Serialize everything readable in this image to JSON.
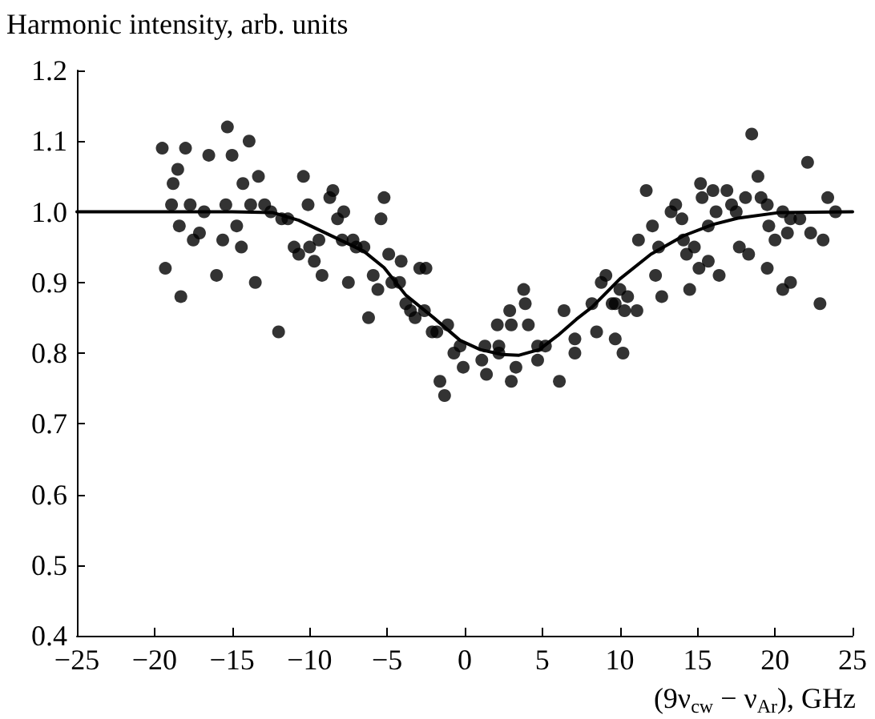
{
  "chart_data": {
    "type": "scatter",
    "xlabel": "(9ν$_{cw}$ − ν$_{Ar}$), GHz",
    "ylabel": "Harmonic intensity, arb. units",
    "xlim": [
      -25,
      25
    ],
    "xticks": [
      {
        "value": -25,
        "label": "−25"
      },
      {
        "value": -20,
        "label": "−20"
      },
      {
        "value": -15,
        "label": "−15"
      },
      {
        "value": -10,
        "label": "−10"
      },
      {
        "value": -5,
        "label": "−5"
      },
      0,
      5,
      10,
      15,
      20,
      25
    ],
    "ylim": [
      0.4,
      1.2
    ],
    "yticks": [
      0.4,
      0.5,
      0.6,
      0.7,
      0.8,
      0.9,
      {
        "value": 1,
        "label": "1.0"
      },
      1.1,
      1.2
    ],
    "series": [
      {
        "type": "scatter",
        "marker": "circle",
        "color": "#000000",
        "x": [
          -15.3,
          -19.5,
          -18.0,
          -16.5,
          -15.0,
          -13.9,
          -18.5,
          -18.8,
          -13.3,
          -14.3,
          -10.4,
          -8.5,
          -8.7,
          -18.9,
          -17.7,
          -16.8,
          -15.4,
          -13.8,
          -12.9,
          -12.5,
          -10.1,
          -7.8,
          -8.2,
          -5.2,
          -5.4,
          -18.4,
          -11.8,
          -11.4,
          -17.1,
          -14.7,
          -17.5,
          -15.6,
          -14.4,
          -11.0,
          -10.0,
          -9.4,
          -10.7,
          -9.7,
          -7.9,
          -7.2,
          -7.0,
          -6.5,
          -19.3,
          -16.0,
          -13.5,
          -9.2,
          -7.5,
          -5.9,
          -5.6,
          -18.3,
          -6.2,
          -12.0,
          -4.9,
          -4.1,
          -2.9,
          -2.5,
          -4.7,
          -4.2,
          -3.8,
          -3.5,
          -2.6,
          -3.2,
          -2.1,
          -1.8,
          -1.1,
          3.8,
          3.9,
          2.9,
          2.1,
          3.0,
          4.1,
          6.4,
          8.2,
          -0.3,
          -0.7,
          1.3,
          2.2,
          2.2,
          4.7,
          5.2,
          7.1,
          7.1,
          1.1,
          -0.1,
          1.4,
          3.3,
          4.7,
          3.0,
          6.1,
          -1.6,
          -1.3,
          18.5,
          22.1,
          18.9,
          11.7,
          15.2,
          16.0,
          16.9,
          15.3,
          18.1,
          19.1,
          23.4,
          13.6,
          13.3,
          16.2,
          17.2,
          19.5,
          23.9,
          20.5,
          17.5,
          14.0,
          12.1,
          15.7,
          21.0,
          21.6,
          19.6,
          20.8,
          22.3,
          11.2,
          14.1,
          20.0,
          23.1,
          12.5,
          14.3,
          14.8,
          17.7,
          9.1,
          18.3,
          15.7,
          15.1,
          12.3,
          16.4,
          19.5,
          8.8,
          10.0,
          10.5,
          9.5,
          9.7,
          11.1,
          10.3,
          12.7,
          14.5,
          20.5,
          21.0,
          22.9,
          8.5,
          9.7,
          10.2
        ],
        "values": [
          1.12,
          1.09,
          1.09,
          1.08,
          1.08,
          1.1,
          1.06,
          1.04,
          1.05,
          1.04,
          1.05,
          1.03,
          1.02,
          1.01,
          1.01,
          1.0,
          1.01,
          1.01,
          1.01,
          1.0,
          1.01,
          1.0,
          0.99,
          1.02,
          0.99,
          0.98,
          0.99,
          0.99,
          0.97,
          0.98,
          0.96,
          0.96,
          0.95,
          0.95,
          0.95,
          0.96,
          0.94,
          0.93,
          0.96,
          0.96,
          0.95,
          0.95,
          0.92,
          0.91,
          0.9,
          0.91,
          0.9,
          0.91,
          0.89,
          0.88,
          0.85,
          0.83,
          0.94,
          0.93,
          0.92,
          0.92,
          0.9,
          0.9,
          0.87,
          0.86,
          0.86,
          0.85,
          0.83,
          0.83,
          0.84,
          0.89,
          0.87,
          0.86,
          0.84,
          0.84,
          0.84,
          0.86,
          0.87,
          0.81,
          0.8,
          0.81,
          0.81,
          0.8,
          0.81,
          0.81,
          0.82,
          0.8,
          0.79,
          0.78,
          0.77,
          0.78,
          0.79,
          0.76,
          0.76,
          0.76,
          0.74,
          1.11,
          1.07,
          1.05,
          1.03,
          1.04,
          1.03,
          1.03,
          1.02,
          1.02,
          1.02,
          1.02,
          1.01,
          1.0,
          1.0,
          1.01,
          1.01,
          1.0,
          1.0,
          1.0,
          0.99,
          0.98,
          0.98,
          0.99,
          0.99,
          0.98,
          0.97,
          0.97,
          0.96,
          0.96,
          0.96,
          0.96,
          0.95,
          0.94,
          0.95,
          0.95,
          0.91,
          0.94,
          0.93,
          0.92,
          0.91,
          0.91,
          0.92,
          0.9,
          0.89,
          0.88,
          0.87,
          0.87,
          0.86,
          0.86,
          0.88,
          0.89,
          0.89,
          0.9,
          0.87,
          0.83,
          0.82,
          0.8
        ]
      },
      {
        "type": "line",
        "marker": "none",
        "line_style": "solid",
        "color": "#000000",
        "x": [
          -25,
          -15,
          -12.4,
          -10.7,
          -8.5,
          -6.5,
          -5.2,
          -3.8,
          -2,
          -0.3,
          1,
          2.4,
          3.5,
          4.8,
          6,
          7.2,
          8.2,
          10,
          12,
          14.1,
          16,
          17.6,
          20.3,
          25
        ],
        "values": [
          1.0,
          1.0,
          0.999,
          0.988,
          0.965,
          0.944,
          0.921,
          0.882,
          0.85,
          0.818,
          0.805,
          0.798,
          0.797,
          0.805,
          0.825,
          0.848,
          0.865,
          0.905,
          0.94,
          0.966,
          0.982,
          0.991,
          0.999,
          1.0
        ]
      }
    ]
  }
}
